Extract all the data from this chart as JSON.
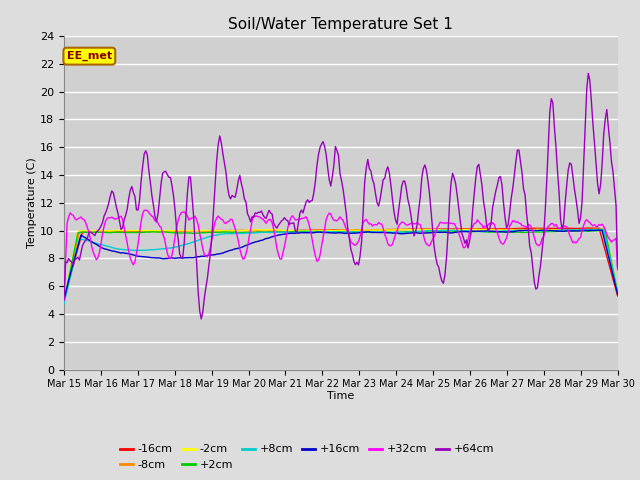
{
  "title": "Soil/Water Temperature Set 1",
  "xlabel": "Time",
  "ylabel": "Temperature (C)",
  "ylim": [
    0,
    24
  ],
  "yticks": [
    0,
    2,
    4,
    6,
    8,
    10,
    12,
    14,
    16,
    18,
    20,
    22,
    24
  ],
  "xtick_labels": [
    "Mar 15",
    "Mar 16",
    "Mar 17",
    "Mar 18",
    "Mar 19",
    "Mar 20",
    "Mar 21",
    "Mar 22",
    "Mar 23",
    "Mar 24",
    "Mar 25",
    "Mar 26",
    "Mar 27",
    "Mar 28",
    "Mar 29",
    "Mar 30"
  ],
  "series_colors": {
    "-16cm": "#ff0000",
    "-8cm": "#ff8800",
    "-2cm": "#ffff00",
    "+2cm": "#00cc00",
    "+8cm": "#00cccc",
    "+16cm": "#0000cc",
    "+32cm": "#ff00ff",
    "+64cm": "#9900bb"
  },
  "background_color": "#dddddd",
  "plot_bg_color": "#d0d0d0",
  "grid_color": "#ffffff",
  "watermark": "EE_met",
  "watermark_fg": "#880000",
  "watermark_bg": "#ffff00",
  "watermark_border": "#aa6600"
}
